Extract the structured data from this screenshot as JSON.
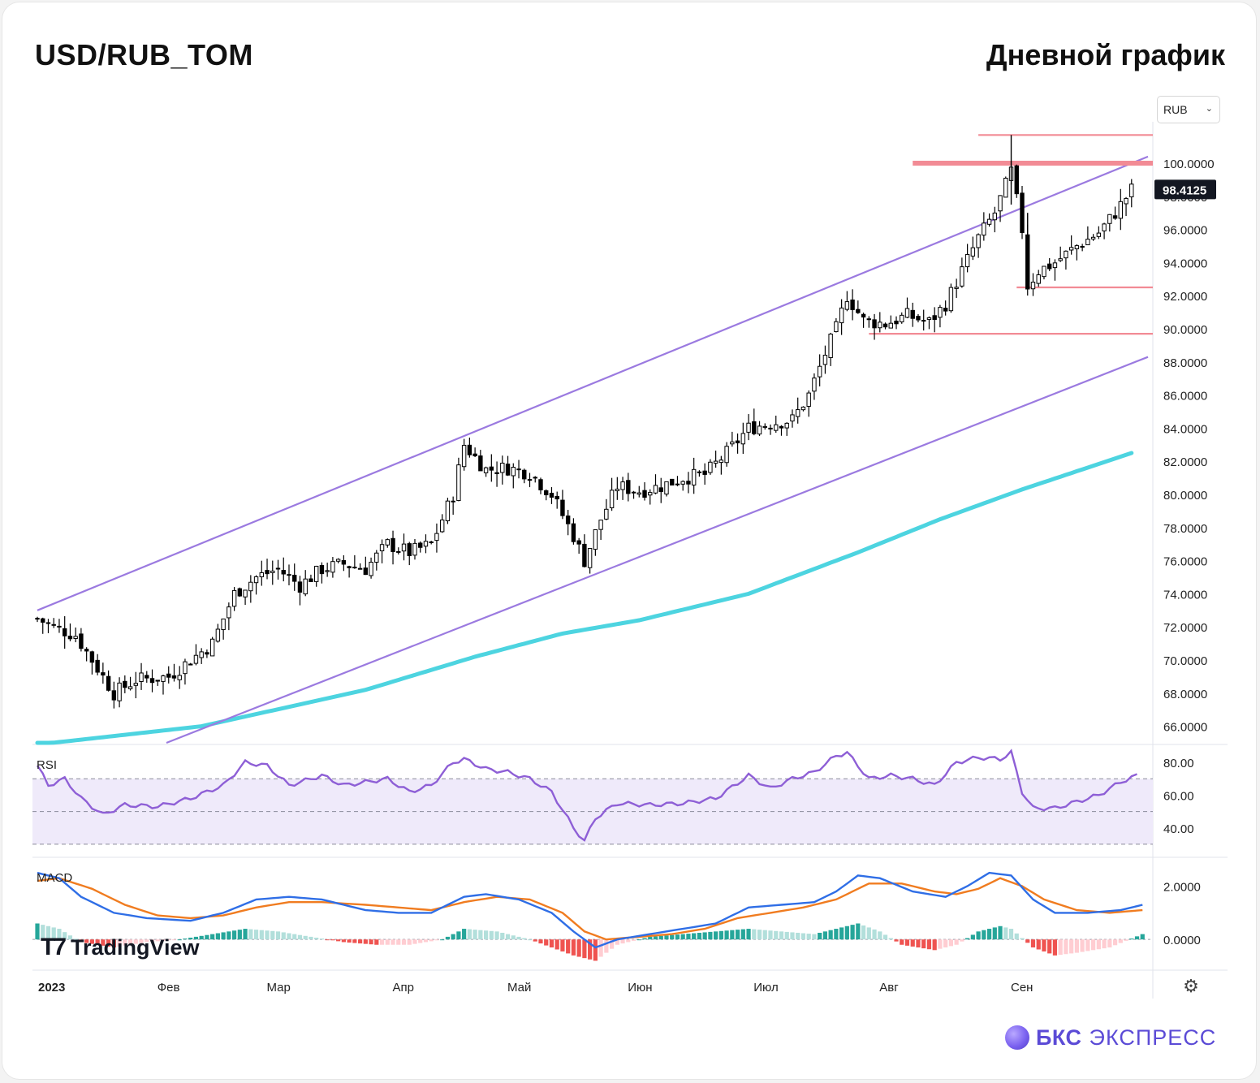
{
  "header": {
    "ticker": "USD/RUB_TOM",
    "timeframe": "Дневной график"
  },
  "currency_select": {
    "value": "RUB",
    "icon": "chevron-down-icon"
  },
  "colors": {
    "channel": "#9b7ae0",
    "ma": "#4dd4e0",
    "support": "#f28b95",
    "rsi": "#8e5fd6",
    "rsi_band": "#efeafa",
    "macd": "#2f6ee6",
    "signal": "#f07c20",
    "hist_pos_dark": "#26a69a",
    "hist_pos_light": "#b2dfdb",
    "hist_neg_dark": "#ef5350",
    "hist_neg_light": "#ffcdd2"
  },
  "chart_data": {
    "type": "candlestick",
    "price_axis": {
      "min": 65,
      "max": 102.5,
      "ticks": [
        "66.0000",
        "68.0000",
        "70.0000",
        "72.0000",
        "74.0000",
        "76.0000",
        "78.0000",
        "80.0000",
        "82.0000",
        "84.0000",
        "86.0000",
        "88.0000",
        "90.0000",
        "92.0000",
        "94.0000",
        "96.0000",
        "98.0000",
        "100.0000"
      ]
    },
    "last_price": "98.4125",
    "time_axis": [
      "2023",
      "Фев",
      "Мар",
      "Апр",
      "Май",
      "Июн",
      "Июл",
      "Авг",
      "Сен"
    ],
    "series_anchor_closes": [
      [
        0,
        72.5
      ],
      [
        3,
        72.0
      ],
      [
        7,
        71.5
      ],
      [
        10,
        70.0
      ],
      [
        14,
        68.0
      ],
      [
        18,
        68.8
      ],
      [
        24,
        69.0
      ],
      [
        28,
        70.0
      ],
      [
        32,
        71.0
      ],
      [
        36,
        74.0
      ],
      [
        40,
        75.0
      ],
      [
        44,
        75.5
      ],
      [
        48,
        74.5
      ],
      [
        52,
        75.5
      ],
      [
        56,
        75.8
      ],
      [
        60,
        75.5
      ],
      [
        64,
        77.0
      ],
      [
        68,
        76.5
      ],
      [
        72,
        77.0
      ],
      [
        76,
        80.0
      ],
      [
        78,
        83.0
      ],
      [
        82,
        81.5
      ],
      [
        86,
        81.6
      ],
      [
        90,
        81.3
      ],
      [
        94,
        80.0
      ],
      [
        98,
        77.5
      ],
      [
        100,
        76.0
      ],
      [
        103,
        78.5
      ],
      [
        106,
        80.5
      ],
      [
        110,
        80.2
      ],
      [
        114,
        80.5
      ],
      [
        118,
        81.0
      ],
      [
        122,
        81.2
      ],
      [
        126,
        82.5
      ],
      [
        130,
        84.0
      ],
      [
        134,
        84.3
      ],
      [
        138,
        84.5
      ],
      [
        141,
        86.0
      ],
      [
        144,
        88.5
      ],
      [
        146,
        90.0
      ],
      [
        148,
        92.0
      ],
      [
        151,
        90.5
      ],
      [
        155,
        90.3
      ],
      [
        159,
        90.8
      ],
      [
        163,
        90.4
      ],
      [
        166,
        91.5
      ],
      [
        169,
        93.5
      ],
      [
        172,
        95.5
      ],
      [
        175,
        97.0
      ],
      [
        178,
        99.5
      ],
      [
        180,
        96.0
      ],
      [
        181,
        92.6
      ],
      [
        183,
        93.5
      ],
      [
        186,
        94.0
      ],
      [
        190,
        95.0
      ],
      [
        194,
        95.8
      ],
      [
        197,
        97.0
      ],
      [
        200,
        98.4
      ]
    ],
    "support_levels": [
      101.7,
      100.0,
      92.5,
      89.7
    ],
    "channel": {
      "upper": {
        "from": [
          0,
          73.0
        ],
        "to": [
          203,
          100.4
        ]
      },
      "lower": {
        "from": [
          23,
          65.0
        ],
        "to": [
          203,
          88.3
        ]
      }
    },
    "ma_200": [
      [
        0,
        64.9
      ],
      [
        30,
        66.0
      ],
      [
        60,
        68.2
      ],
      [
        80,
        70.2
      ],
      [
        96,
        71.6
      ],
      [
        110,
        72.4
      ],
      [
        130,
        74.0
      ],
      [
        150,
        76.5
      ],
      [
        165,
        78.5
      ],
      [
        180,
        80.3
      ],
      [
        200,
        82.5
      ]
    ],
    "rsi": {
      "label": "RSI",
      "axis": [
        "80.00",
        "60.00",
        "40.00"
      ],
      "band": [
        30,
        70
      ],
      "values": [
        [
          0,
          78
        ],
        [
          2,
          66
        ],
        [
          5,
          70
        ],
        [
          8,
          58
        ],
        [
          12,
          48
        ],
        [
          16,
          54
        ],
        [
          22,
          53
        ],
        [
          28,
          58
        ],
        [
          34,
          66
        ],
        [
          38,
          80
        ],
        [
          42,
          78
        ],
        [
          46,
          66
        ],
        [
          52,
          72
        ],
        [
          56,
          66
        ],
        [
          60,
          68
        ],
        [
          64,
          70
        ],
        [
          68,
          62
        ],
        [
          72,
          66
        ],
        [
          76,
          80
        ],
        [
          78,
          82
        ],
        [
          82,
          76
        ],
        [
          86,
          74
        ],
        [
          90,
          70
        ],
        [
          94,
          62
        ],
        [
          98,
          40
        ],
        [
          100,
          32
        ],
        [
          102,
          46
        ],
        [
          106,
          55
        ],
        [
          112,
          54
        ],
        [
          118,
          55
        ],
        [
          124,
          58
        ],
        [
          130,
          72
        ],
        [
          134,
          64
        ],
        [
          138,
          70
        ],
        [
          142,
          74
        ],
        [
          146,
          84
        ],
        [
          148,
          86
        ],
        [
          152,
          70
        ],
        [
          156,
          72
        ],
        [
          160,
          70
        ],
        [
          164,
          66
        ],
        [
          168,
          80
        ],
        [
          172,
          83
        ],
        [
          176,
          82
        ],
        [
          178,
          86
        ],
        [
          180,
          62
        ],
        [
          182,
          52
        ],
        [
          186,
          52
        ],
        [
          190,
          56
        ],
        [
          194,
          60
        ],
        [
          198,
          68
        ],
        [
          201,
          72
        ]
      ]
    },
    "macd": {
      "label": "MACD",
      "axis": [
        "2.0000",
        "0.0000"
      ],
      "macd": [
        [
          0,
          2.5
        ],
        [
          4,
          2.3
        ],
        [
          8,
          1.6
        ],
        [
          14,
          1.0
        ],
        [
          20,
          0.8
        ],
        [
          28,
          0.7
        ],
        [
          34,
          1.0
        ],
        [
          40,
          1.5
        ],
        [
          46,
          1.6
        ],
        [
          52,
          1.5
        ],
        [
          60,
          1.1
        ],
        [
          66,
          1.0
        ],
        [
          72,
          1.0
        ],
        [
          78,
          1.6
        ],
        [
          82,
          1.7
        ],
        [
          88,
          1.5
        ],
        [
          94,
          1.0
        ],
        [
          98,
          0.3
        ],
        [
          102,
          -0.3
        ],
        [
          106,
          0.0
        ],
        [
          112,
          0.2
        ],
        [
          118,
          0.4
        ],
        [
          124,
          0.6
        ],
        [
          130,
          1.2
        ],
        [
          136,
          1.3
        ],
        [
          142,
          1.4
        ],
        [
          146,
          1.8
        ],
        [
          150,
          2.4
        ],
        [
          154,
          2.3
        ],
        [
          160,
          1.8
        ],
        [
          166,
          1.6
        ],
        [
          170,
          2.0
        ],
        [
          174,
          2.5
        ],
        [
          178,
          2.4
        ],
        [
          182,
          1.5
        ],
        [
          186,
          1.0
        ],
        [
          192,
          1.0
        ],
        [
          198,
          1.1
        ],
        [
          202,
          1.3
        ]
      ],
      "signal": [
        [
          0,
          2.2
        ],
        [
          4,
          2.3
        ],
        [
          10,
          1.9
        ],
        [
          16,
          1.3
        ],
        [
          22,
          0.9
        ],
        [
          28,
          0.8
        ],
        [
          34,
          0.9
        ],
        [
          40,
          1.2
        ],
        [
          46,
          1.4
        ],
        [
          52,
          1.4
        ],
        [
          60,
          1.3
        ],
        [
          66,
          1.2
        ],
        [
          72,
          1.1
        ],
        [
          78,
          1.4
        ],
        [
          84,
          1.6
        ],
        [
          90,
          1.5
        ],
        [
          96,
          1.0
        ],
        [
          100,
          0.3
        ],
        [
          104,
          0.0
        ],
        [
          110,
          0.1
        ],
        [
          116,
          0.2
        ],
        [
          122,
          0.4
        ],
        [
          128,
          0.8
        ],
        [
          134,
          1.0
        ],
        [
          140,
          1.2
        ],
        [
          146,
          1.5
        ],
        [
          152,
          2.1
        ],
        [
          158,
          2.1
        ],
        [
          164,
          1.8
        ],
        [
          168,
          1.7
        ],
        [
          172,
          1.9
        ],
        [
          176,
          2.3
        ],
        [
          180,
          2.0
        ],
        [
          184,
          1.5
        ],
        [
          190,
          1.1
        ],
        [
          196,
          1.0
        ],
        [
          202,
          1.1
        ]
      ],
      "histogram": [
        [
          0,
          0.6
        ],
        [
          4,
          0.4
        ],
        [
          8,
          -0.1
        ],
        [
          14,
          -0.3
        ],
        [
          20,
          -0.1
        ],
        [
          26,
          0.0
        ],
        [
          32,
          0.2
        ],
        [
          38,
          0.4
        ],
        [
          44,
          0.3
        ],
        [
          50,
          0.1
        ],
        [
          56,
          -0.1
        ],
        [
          62,
          -0.2
        ],
        [
          68,
          -0.2
        ],
        [
          74,
          0.0
        ],
        [
          78,
          0.4
        ],
        [
          84,
          0.3
        ],
        [
          90,
          0.0
        ],
        [
          94,
          -0.3
        ],
        [
          98,
          -0.6
        ],
        [
          102,
          -0.8
        ],
        [
          106,
          -0.2
        ],
        [
          112,
          0.1
        ],
        [
          118,
          0.2
        ],
        [
          124,
          0.3
        ],
        [
          130,
          0.4
        ],
        [
          136,
          0.3
        ],
        [
          142,
          0.2
        ],
        [
          146,
          0.4
        ],
        [
          150,
          0.6
        ],
        [
          154,
          0.3
        ],
        [
          158,
          -0.2
        ],
        [
          164,
          -0.4
        ],
        [
          168,
          -0.2
        ],
        [
          172,
          0.3
        ],
        [
          176,
          0.5
        ],
        [
          178,
          0.4
        ],
        [
          182,
          -0.3
        ],
        [
          186,
          -0.6
        ],
        [
          190,
          -0.5
        ],
        [
          196,
          -0.3
        ],
        [
          202,
          0.2
        ]
      ]
    }
  },
  "watermark": {
    "brand": "TradingView",
    "icon": "tradingview-logo-icon"
  },
  "settings_icon": "gear-icon",
  "footer_brand": {
    "bold": "БКС",
    "rest": "ЭКСПРЕСС",
    "icon": "bks-ball-icon"
  }
}
